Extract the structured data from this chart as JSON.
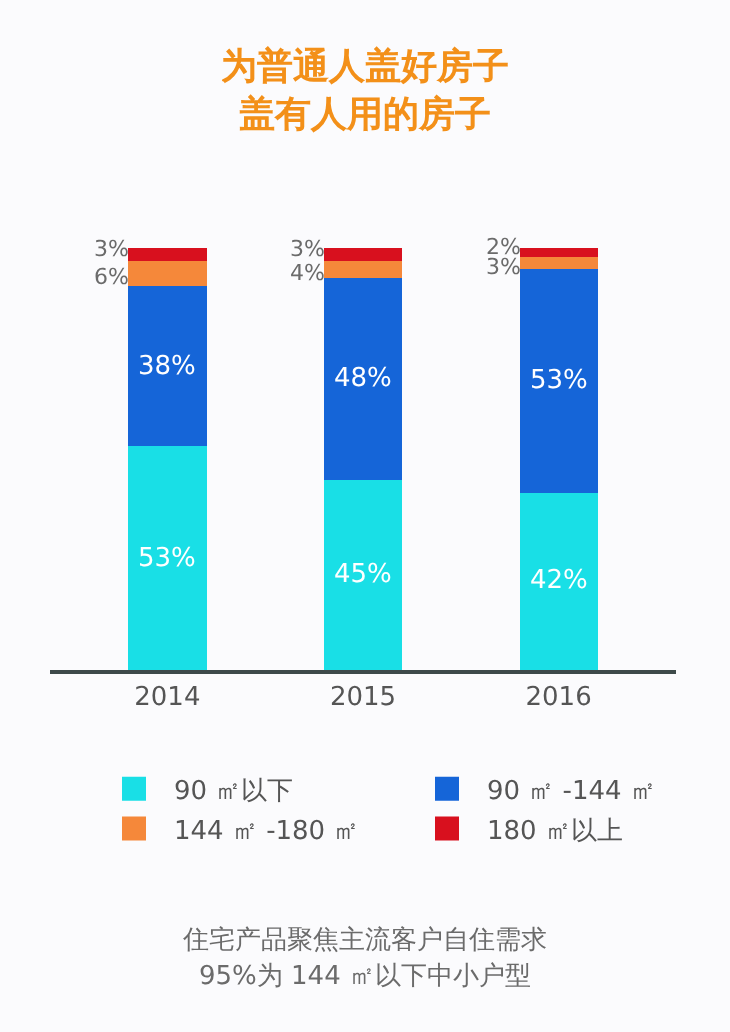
{
  "chart_data": {
    "type": "bar",
    "title": "为普通人盖好房子盖有人用的房子",
    "categories": [
      "2014",
      "2015",
      "2016"
    ],
    "stacked": true,
    "series": [
      {
        "name": "90 ㎡以下",
        "color": "#19dfe6",
        "values": [
          53,
          45,
          42
        ],
        "value_labels": [
          "53%",
          "45%",
          "42%"
        ]
      },
      {
        "name": "90 ㎡ -144 ㎡",
        "color": "#1565d8",
        "values": [
          38,
          48,
          53
        ],
        "value_labels": [
          "38%",
          "48%",
          "53%"
        ]
      },
      {
        "name": "144 ㎡ -180 ㎡",
        "color": "#f5883a",
        "values": [
          6,
          4,
          3
        ],
        "value_labels": [
          "6%",
          "4%",
          "3%"
        ]
      },
      {
        "name": "180 ㎡以上",
        "color": "#d8101e",
        "values": [
          3,
          3,
          2
        ],
        "value_labels": [
          "3%",
          "3%",
          "2%"
        ]
      }
    ],
    "legend": "bottom",
    "grid": false,
    "annotations": [
      "住宅产品聚焦主流客户自住需求95%为 144 ㎡以下中小户型"
    ]
  }
}
